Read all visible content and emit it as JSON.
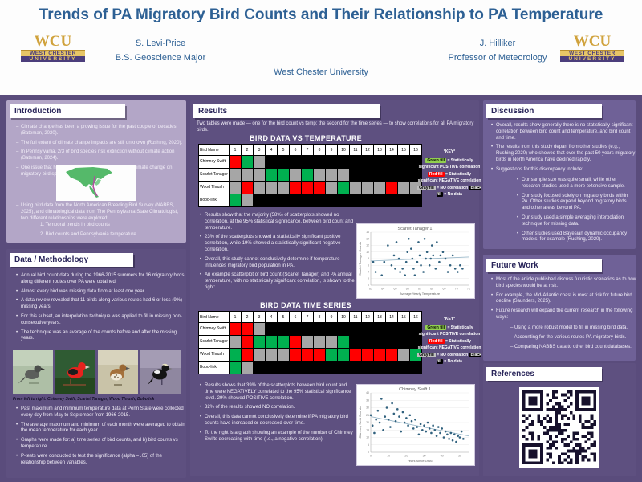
{
  "header": {
    "title": "Trends of PA Migratory Bird Counts and Their Relationship to PA Temperature",
    "author_left": {
      "name": "S. Levi-Price",
      "role": "B.S. Geoscience Major"
    },
    "author_right": {
      "name": "J. Hilliker",
      "role": "Professor of Meteorology"
    },
    "institution": "West Chester University",
    "logo": {
      "acronym": "WCU",
      "line1": "WEST CHESTER",
      "line2": "UNIVERSITY"
    }
  },
  "intro": {
    "title": "Introduction",
    "bullets": [
      "Climate change has been a growing issue for the past couple of decades (Bateman, 2020).",
      "The full extent of climate change impacts are still unknown (Rushing, 2020).",
      "In Pennsylvania, 2/3 of bird species risk extinction without climate action (Bateman, 2024).",
      "One issue that has not been studied is the impact of climate change on migratory bird species counts in PA."
    ],
    "bullets2": [
      "Using bird data from the North American Breeding Bird Survey (NABBS, 2025), and climatological data from The Pennsylvania State Climatologist, two different relationships were explored:"
    ],
    "numbered": [
      "1. Temporal trends in bird counts",
      "2. Bird counts and Pennsylvania temperature"
    ]
  },
  "data_methodology": {
    "title": "Data / Methodology",
    "bullets1": [
      "Annual bird count data during the 1966-2015 summers for 16 migratory birds along different routes over PA were obtained.",
      "Almost every bird was missing data from at least one year.",
      "A data review revealed that 11 birds along various routes had 6 or less (9%) missing years.",
      "For this subset, an interpolation technique was applied to fill in missing non-consecutive years.",
      "The technique was an average of the counts before and after the missing years."
    ],
    "photo_caption": "From left to right: Chimney Swift, Scarlet Tanager, Wood Thrush, Bobolink",
    "bullets2": [
      "Past maximum and minimum temperature data at Penn State were collected every day from May to September from 1966-2015.",
      "The average maximum and minimum of each month were averaged to obtain the mean temperature for each year.",
      "Graphs were made for: a) time series of bird counts, and b) bird counts vs temperature.",
      "P-tests were conducted to test the significance (alpha = .05) of the relationship between variables."
    ]
  },
  "results": {
    "title": "Results",
    "intro": "Two tables were made — one for the bird count vs temp; the second for the time series — to show correlations for all PA migratory birds.",
    "cell_colors": {
      "G": "#00b050",
      "R": "#ff0000",
      "N": "#a6a6a6",
      "B": "#000000"
    },
    "key": {
      "title": "*KEY*",
      "lines": [
        {
          "chip": "Green fill",
          "chip_bg": "#92d050",
          "chip_fg": "#000000",
          "text": "= Statistically significant POSITIVE correlation"
        },
        {
          "chip": "Red fill",
          "chip_bg": "#ff0000",
          "chip_fg": "#ffffff",
          "text": "= Statistically significant NEGATIVE correlation"
        },
        {
          "chip": "Gray fill",
          "chip_bg": "#bfbfbf",
          "chip_fg": "#000000",
          "text": "= NO correlation"
        },
        {
          "chip": "Black fill",
          "chip_bg": "#000000",
          "chip_fg": "#ffffff",
          "text": "= No data"
        }
      ]
    },
    "bullets1": [
      "Results show that the majority (58%) of scatterplots showed no correlation, at the 95% statistical significance, between bird count and temperature.",
      "23% of the scatterplots showed a statistically significant positive correlation, while 19% showed a statistically significant negative correlation.",
      "Overall, this study cannot conclusively determine if temperature influences migratory bird population in PA.",
      "An example scatterplot of bird count (Scarlet Tanager) and PA annual temperature, with no statistically significant correlation, is shown to the right:"
    ],
    "bullets2": [
      "Results shows that 39% of the scatterplots between bird count and time were NEGATIVELY correlated to the 95% statistical significance level. 29% showed POSITIVE correlation.",
      "32% of the results showed NO correlation.",
      "Overall, this data cannot conclusively determine if PA migratory bird counts have increased or decreased over time.",
      "To the right is a graph showing an example of the number of Chimney Swifts decreasing with time (i.e., a negative correlation)."
    ]
  },
  "discussion": {
    "title": "Discussion",
    "bullets": [
      "Overall, results show generally there is no statistically significant correlation between bird count and temperature, and bird count and time.",
      "The results from this study depart from other studies (e.g., Rushing 2020) who showed that over the past 50 years migratory birds in North America have declined rapidly.",
      "Suggestions for this discrepancy include:"
    ],
    "sub_bullets": [
      "Our sample size was quite small, while other research studies used a more extensive sample.",
      "Our study focused solely on migratory birds within PA. Other studies expand beyond migratory birds and other areas beyond PA.",
      "Our study used a simple averaging interpolation technique for missing data.",
      "Other studies used Bayesian dynamic occupancy models, for example (Rushing, 2020)."
    ]
  },
  "future_work": {
    "title": "Future Work",
    "bullets": [
      "Most of the article published discuss futuristic scenarios as to how bird species would be at risk.",
      "For example, the Mid-Atlantic coast is most at risk for future bird decline (Saunders, 2025).",
      "Future research will expand the current research in the following ways:"
    ],
    "sub_bullets": [
      "– Using a more robust model to fill in missing bird data.",
      "– Accounting for the various routes PA migratory birds.",
      "– Comparing NABBS data to other bird count databases."
    ]
  },
  "references": {
    "title": "References"
  },
  "chart_data": [
    {
      "type": "table",
      "title": "BIRD DATA VS TEMPERATURE",
      "corner": "Bird Name",
      "columns": [
        "1",
        "2",
        "3",
        "4",
        "5",
        "6",
        "7",
        "8",
        "9",
        "10",
        "11",
        "12",
        "13",
        "14",
        "15",
        "16"
      ],
      "legend": "G=significant positive, R=significant negative, N=no correlation, B=no data",
      "rows": [
        {
          "name": "Chimney Swift",
          "cells": [
            "R",
            "G",
            "N",
            "B",
            "B",
            "B",
            "B",
            "B",
            "B",
            "B",
            "B",
            "B",
            "B",
            "B",
            "B",
            "B"
          ]
        },
        {
          "name": "Scarlet Tanager",
          "cells": [
            "N",
            "N",
            "N",
            "G",
            "G",
            "N",
            "G",
            "N",
            "N",
            "N",
            "B",
            "B",
            "B",
            "B",
            "B",
            "B"
          ]
        },
        {
          "name": "Wood Thrush",
          "cells": [
            "N",
            "R",
            "N",
            "N",
            "N",
            "R",
            "R",
            "R",
            "N",
            "G",
            "N",
            "N",
            "N",
            "R",
            "N",
            "N"
          ]
        },
        {
          "name": "Bobo-link",
          "cells": [
            "G",
            "N",
            "B",
            "B",
            "B",
            "B",
            "B",
            "B",
            "B",
            "B",
            "B",
            "B",
            "B",
            "B",
            "B",
            "B"
          ]
        }
      ]
    },
    {
      "type": "table",
      "title": "BIRD DATA TIME SERIES",
      "corner": "Bird Name",
      "columns": [
        "1",
        "2",
        "3",
        "4",
        "5",
        "6",
        "7",
        "8",
        "9",
        "10",
        "11",
        "12",
        "13",
        "14",
        "15",
        "16"
      ],
      "legend": "G=significant positive, R=significant negative, N=no correlation, B=no data",
      "rows": [
        {
          "name": "Chimney Swift",
          "cells": [
            "R",
            "R",
            "N",
            "B",
            "B",
            "B",
            "B",
            "B",
            "B",
            "B",
            "B",
            "B",
            "B",
            "B",
            "B",
            "B"
          ]
        },
        {
          "name": "Scarlet Tanager",
          "cells": [
            "N",
            "R",
            "G",
            "G",
            "G",
            "R",
            "N",
            "N",
            "N",
            "G",
            "B",
            "B",
            "B",
            "B",
            "B",
            "B"
          ]
        },
        {
          "name": "Wood Thrush",
          "cells": [
            "G",
            "R",
            "N",
            "N",
            "N",
            "R",
            "R",
            "R",
            "G",
            "G",
            "R",
            "R",
            "R",
            "R",
            "N",
            "G"
          ]
        },
        {
          "name": "Bobo-link",
          "cells": [
            "G",
            "N",
            "B",
            "B",
            "B",
            "B",
            "B",
            "B",
            "B",
            "B",
            "B",
            "B",
            "B",
            "B",
            "B",
            "B"
          ]
        }
      ]
    },
    {
      "type": "scatter",
      "title": "Scarlet Tanager 1",
      "xlabel": "Average Yearly Temperature",
      "ylabel": "Scarlet Tanager Counts",
      "xlim": [
        63,
        71
      ],
      "ylim": [
        0,
        16
      ],
      "xticks": [
        63,
        64,
        65,
        66,
        67,
        68,
        69,
        70,
        71
      ],
      "yticks": [
        0,
        2,
        4,
        6,
        8,
        10,
        12,
        14,
        16
      ],
      "grid": true,
      "legend_position": "none",
      "trend": [
        [
          63,
          7.3
        ],
        [
          71,
          8.5
        ]
      ],
      "points": [
        [
          63.2,
          7
        ],
        [
          63.4,
          4
        ],
        [
          63.9,
          3
        ],
        [
          64.1,
          7
        ],
        [
          64.4,
          12
        ],
        [
          64.7,
          6
        ],
        [
          64.9,
          9
        ],
        [
          65.0,
          5
        ],
        [
          65.1,
          13
        ],
        [
          65.3,
          8
        ],
        [
          65.4,
          4
        ],
        [
          65.6,
          5
        ],
        [
          65.8,
          3
        ],
        [
          65.9,
          7
        ],
        [
          66.0,
          10
        ],
        [
          66.1,
          14
        ],
        [
          66.3,
          11
        ],
        [
          66.4,
          8
        ],
        [
          66.5,
          5
        ],
        [
          66.6,
          3
        ],
        [
          66.8,
          7
        ],
        [
          66.9,
          13
        ],
        [
          67.0,
          9
        ],
        [
          67.1,
          6
        ],
        [
          67.3,
          4
        ],
        [
          67.4,
          14
        ],
        [
          67.5,
          8
        ],
        [
          67.6,
          10
        ],
        [
          67.8,
          6
        ],
        [
          67.9,
          8
        ],
        [
          68.0,
          12
        ],
        [
          68.1,
          9
        ],
        [
          68.3,
          5
        ],
        [
          68.4,
          13
        ],
        [
          68.6,
          7
        ],
        [
          68.7,
          9
        ],
        [
          68.9,
          10
        ],
        [
          69.1,
          8
        ],
        [
          69.3,
          4
        ],
        [
          69.5,
          6
        ],
        [
          69.7,
          9
        ],
        [
          69.9,
          5
        ],
        [
          70.1,
          4
        ],
        [
          70.3,
          6
        ],
        [
          70.5,
          5
        ]
      ]
    },
    {
      "type": "scatter",
      "title": "Chimney Swift 1",
      "xlabel": "Years Since 1966",
      "ylabel": "Chimney Swift Counts",
      "xlim": [
        0,
        55
      ],
      "ylim": [
        0,
        40
      ],
      "xticks": [
        0,
        10,
        20,
        30,
        40,
        50
      ],
      "yticks": [
        0,
        5,
        10,
        15,
        20,
        25,
        30,
        35,
        40
      ],
      "grid": true,
      "legend_position": "none",
      "trend": [
        [
          0,
          24
        ],
        [
          55,
          11
        ]
      ],
      "points": [
        [
          0,
          25
        ],
        [
          1,
          18
        ],
        [
          2,
          13
        ],
        [
          3,
          22
        ],
        [
          4,
          28
        ],
        [
          5,
          20
        ],
        [
          6,
          36
        ],
        [
          7,
          15
        ],
        [
          8,
          24
        ],
        [
          9,
          30
        ],
        [
          10,
          22
        ],
        [
          11,
          17
        ],
        [
          12,
          33
        ],
        [
          13,
          26
        ],
        [
          14,
          21
        ],
        [
          15,
          29
        ],
        [
          16,
          24
        ],
        [
          17,
          14
        ],
        [
          18,
          27
        ],
        [
          19,
          20
        ],
        [
          20,
          23
        ],
        [
          21,
          18
        ],
        [
          22,
          25
        ],
        [
          23,
          21
        ],
        [
          24,
          16
        ],
        [
          25,
          22
        ],
        [
          26,
          17
        ],
        [
          27,
          12
        ],
        [
          28,
          19
        ],
        [
          29,
          15
        ],
        [
          30,
          18
        ],
        [
          31,
          14
        ],
        [
          32,
          20
        ],
        [
          33,
          16
        ],
        [
          34,
          13
        ],
        [
          35,
          18
        ],
        [
          36,
          15
        ],
        [
          37,
          11
        ],
        [
          38,
          17
        ],
        [
          39,
          13
        ],
        [
          40,
          16
        ],
        [
          41,
          10
        ],
        [
          42,
          14
        ],
        [
          43,
          12
        ],
        [
          44,
          9
        ],
        [
          45,
          13
        ],
        [
          46,
          8
        ],
        [
          47,
          12
        ],
        [
          48,
          7
        ],
        [
          49,
          11
        ],
        [
          50,
          10
        ],
        [
          51,
          14
        ],
        [
          52,
          9
        ]
      ]
    }
  ]
}
